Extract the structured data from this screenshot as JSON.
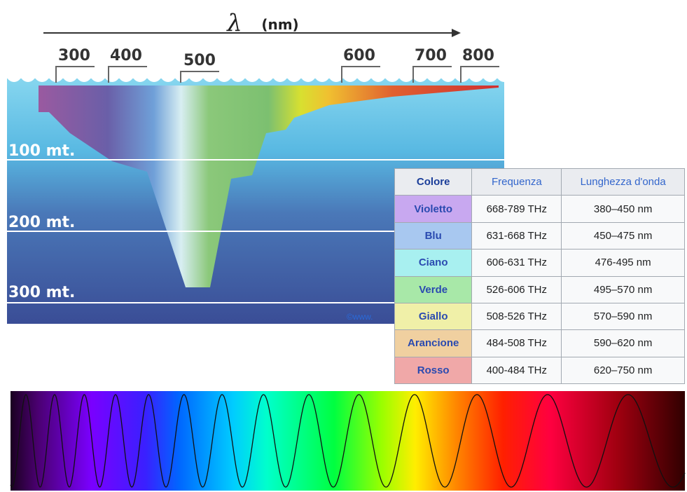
{
  "axis_label": {
    "symbol": "λ",
    "unit": "(nm)"
  },
  "wavelength_labels": [
    300,
    400,
    500,
    600,
    700,
    800
  ],
  "depth_labels": [
    "100 mt.",
    "200 mt.",
    "300 mt."
  ],
  "watermark": "©www.",
  "table": {
    "header": [
      "Colore",
      "Frequenza",
      "Lunghezza d'onda"
    ],
    "rows": [
      [
        "Violetto",
        "668-789 THz",
        "380–450 nm"
      ],
      [
        "Blu",
        "631-668 THz",
        "450–475 nm"
      ],
      [
        "Ciano",
        "606-631 THz",
        "476-495 nm"
      ],
      [
        "Verde",
        "526-606 THz",
        "495–570 nm"
      ],
      [
        "Giallo",
        "508-526 THz",
        "570–590 nm"
      ],
      [
        "Arancione",
        "484-508 THz",
        "590–620 nm"
      ],
      [
        "Rosso",
        "400-484 THz",
        "620–750 nm"
      ]
    ]
  }
}
